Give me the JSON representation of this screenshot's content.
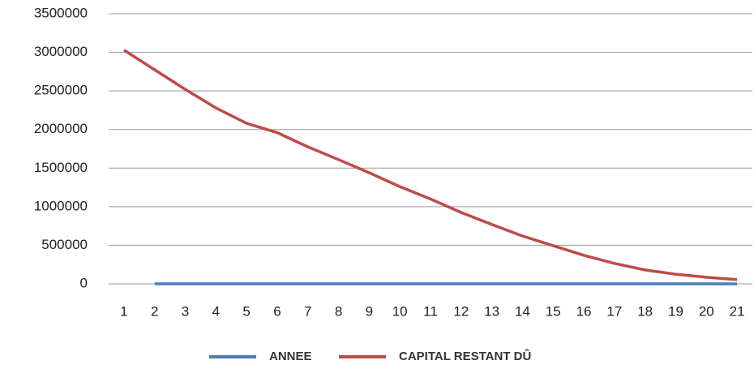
{
  "chart_data": {
    "type": "line",
    "categories": [
      "1",
      "2",
      "3",
      "4",
      "5",
      "6",
      "7",
      "8",
      "9",
      "10",
      "11",
      "12",
      "13",
      "14",
      "15",
      "16",
      "17",
      "18",
      "19",
      "20",
      "21"
    ],
    "series": [
      {
        "name": "ANNEE",
        "color": "#4a7ebb",
        "values": [
          null,
          0,
          0,
          0,
          0,
          0,
          0,
          0,
          0,
          0,
          0,
          0,
          0,
          0,
          0,
          0,
          0,
          0,
          0,
          0,
          0
        ]
      },
      {
        "name": "CAPITAL RESTANT DÛ",
        "color": "#be4b48",
        "values": [
          3030000,
          2775000,
          2520000,
          2280000,
          2080000,
          1960000,
          1775000,
          1610000,
          1440000,
          1260000,
          1100000,
          925000,
          770000,
          620000,
          495000,
          370000,
          265000,
          180000,
          125000,
          85000,
          55000
        ]
      }
    ],
    "ylim": [
      0,
      3500000
    ],
    "yticks": [
      0,
      500000,
      1000000,
      1500000,
      2000000,
      2500000,
      3000000,
      3500000
    ],
    "grid": true,
    "legend": "bottom"
  }
}
